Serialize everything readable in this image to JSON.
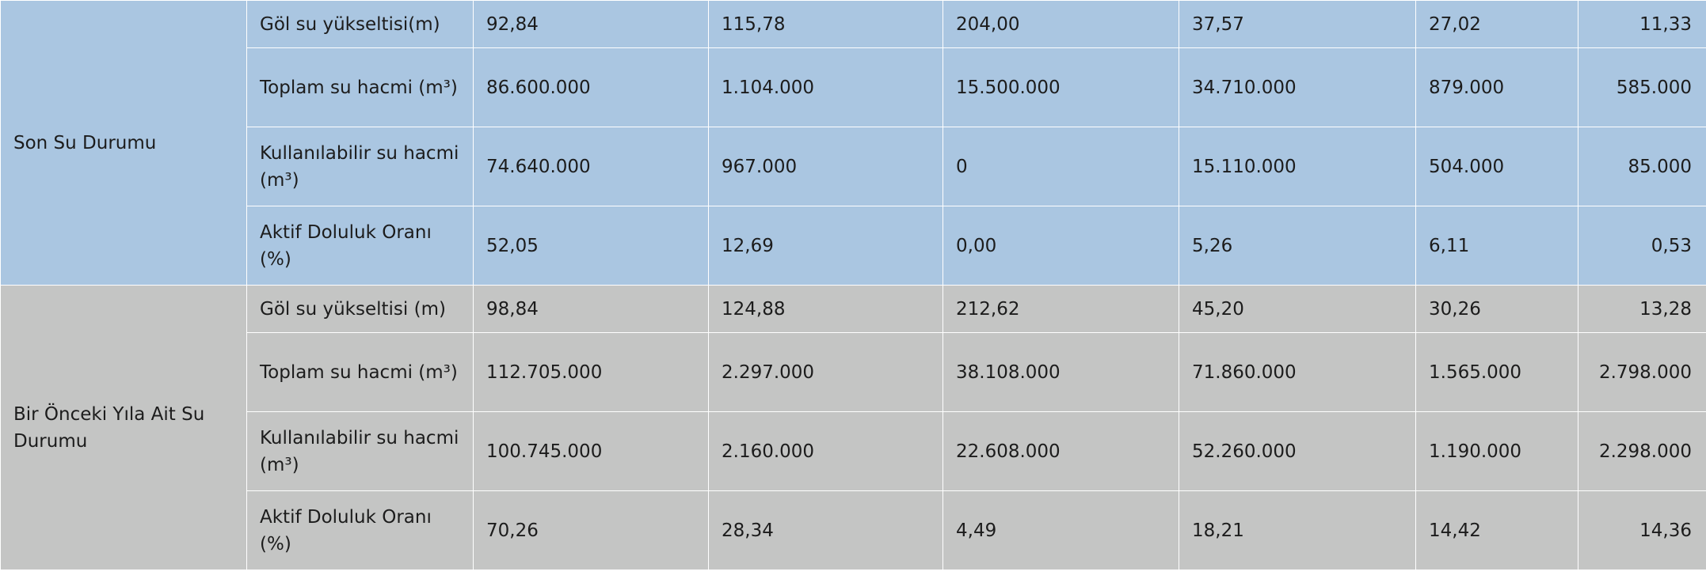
{
  "groups": [
    {
      "label": "Son Su Durumu",
      "rows": [
        {
          "metric": "Göl su yükseltisi(m)",
          "values": [
            "92,84",
            "115,78",
            "204,00",
            "37,57",
            "27,02",
            "11,33"
          ]
        },
        {
          "metric": "Toplam su hacmi (m³)",
          "values": [
            "86.600.000",
            "1.104.000",
            "15.500.000",
            "34.710.000",
            "879.000",
            "585.000"
          ]
        },
        {
          "metric": "Kullanılabilir su hacmi (m³)",
          "values": [
            "74.640.000",
            "967.000",
            "0",
            "15.110.000",
            "504.000",
            "85.000"
          ]
        },
        {
          "metric": "Aktif Doluluk Oranı (%)",
          "values": [
            "52,05",
            "12,69",
            "0,00",
            "5,26",
            "6,11",
            "0,53"
          ]
        }
      ]
    },
    {
      "label": "Bir Önceki Yıla Ait Su Durumu",
      "rows": [
        {
          "metric": "Göl su yükseltisi (m)",
          "values": [
            "98,84",
            "124,88",
            "212,62",
            "45,20",
            "30,26",
            "13,28"
          ]
        },
        {
          "metric": "Toplam su hacmi (m³)",
          "values": [
            "112.705.000",
            "2.297.000",
            "38.108.000",
            "71.860.000",
            "1.565.000",
            "2.798.000"
          ]
        },
        {
          "metric": "Kullanılabilir su hacmi (m³)",
          "values": [
            "100.745.000",
            "2.160.000",
            "22.608.000",
            "52.260.000",
            "1.190.000",
            "2.298.000"
          ]
        },
        {
          "metric": "Aktif Doluluk Oranı (%)",
          "values": [
            "70,26",
            "28,34",
            "4,49",
            "18,21",
            "14,42",
            "14,36"
          ]
        }
      ]
    }
  ],
  "colors": {
    "group_current_bg": "#aac6e1",
    "group_previous_bg": "#c4c5c4",
    "grid_line": "#ffffff",
    "text": "#1c1c1c"
  }
}
